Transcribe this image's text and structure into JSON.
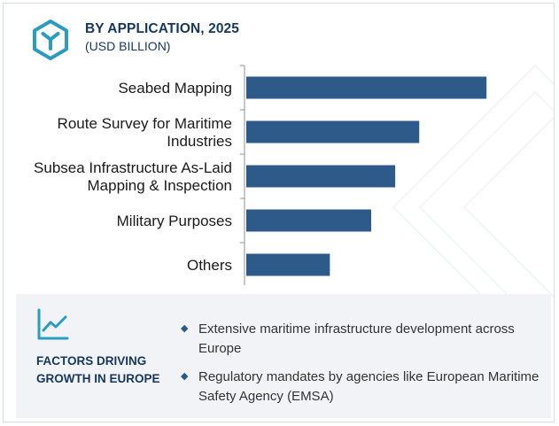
{
  "header": {
    "title": "BY APPLICATION, 2025",
    "subtitle": "(USD BILLION)",
    "logo_icon": "hexagon-logo-icon"
  },
  "chart_data": {
    "type": "bar",
    "orientation": "horizontal",
    "categories": [
      [
        "Seabed Mapping"
      ],
      [
        "Route Survey for Maritime",
        "Industries"
      ],
      [
        "Subsea Infrastructure As-Laid",
        "Mapping & Inspection"
      ],
      [
        "Military Purposes"
      ],
      [
        "Others"
      ]
    ],
    "values": [
      2.5,
      1.8,
      1.55,
      1.3,
      0.87
    ],
    "xlim": [
      0,
      2.6
    ],
    "bar_color": "#2e5a8a",
    "grid": false,
    "axis_tick_labels_shown": false
  },
  "factors": {
    "icon": "trend-chart-icon",
    "title": "FACTORS DRIVING GROWTH IN EUROPE",
    "bullets": [
      "Extensive maritime infrastructure development across Europe",
      "Regulatory mandates by agencies like European Maritime Safety Agency (EMSA)"
    ]
  },
  "colors": {
    "accent": "#17365d",
    "bar": "#2e5a8a",
    "icon_teal": "#2b9cc0",
    "panel_bg": "#f1f3f6"
  }
}
